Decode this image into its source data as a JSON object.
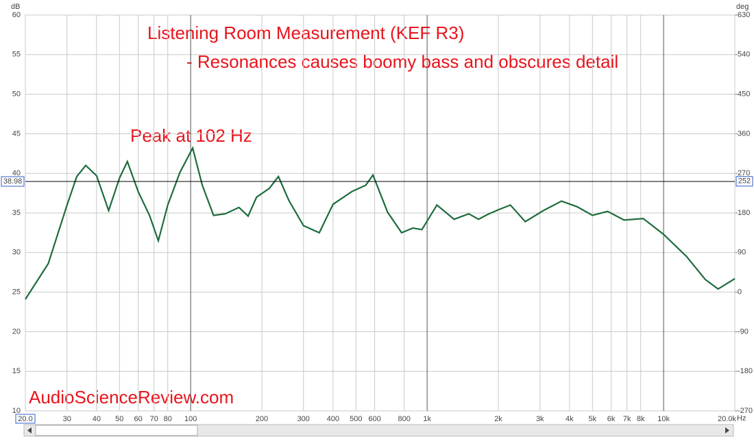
{
  "chart_data": {
    "type": "line",
    "title": "Listening Room Measurement (KEF R3)",
    "subtitle": "- Resonances causes boomy bass and obscures detail",
    "annotations": [
      "Peak at 102 Hz",
      "AudioScienceReview.com"
    ],
    "y_unit": "dB",
    "y2_unit": "deg",
    "x_unit": "Hz",
    "xscale": "log",
    "grid": true,
    "color": "#1d6b3c",
    "x": [
      20,
      25,
      30,
      33,
      36,
      40,
      45,
      50,
      54,
      60,
      67,
      73,
      80,
      90,
      102,
      112,
      125,
      140,
      160,
      175,
      190,
      215,
      235,
      260,
      300,
      350,
      400,
      480,
      550,
      590,
      680,
      780,
      870,
      950,
      1100,
      1300,
      1500,
      1650,
      1800,
      2000,
      2250,
      2600,
      3100,
      3700,
      4300,
      5000,
      5800,
      6800,
      8200,
      10000,
      12500,
      15000,
      17000,
      20000
    ],
    "values": [
      24.1,
      28.6,
      36,
      39.6,
      41,
      39.7,
      35.3,
      39.4,
      41.5,
      37.7,
      34.7,
      31.5,
      36,
      40.1,
      43.2,
      38.5,
      34.7,
      34.9,
      35.7,
      34.6,
      37,
      38.1,
      39.6,
      36.6,
      33.4,
      32.5,
      36.1,
      37.7,
      38.5,
      39.8,
      35.1,
      32.5,
      33.1,
      32.9,
      36,
      34.2,
      34.9,
      34.2,
      34.8,
      35.4,
      36,
      33.9,
      35.3,
      36.5,
      35.8,
      34.7,
      35.2,
      34.1,
      34.3,
      32.3,
      29.5,
      26.6,
      25.4,
      26.7
    ],
    "xlim": [
      20,
      20000
    ],
    "xticks": [
      {
        "value": 20,
        "label": "20.0"
      },
      30,
      40,
      50,
      60,
      70,
      80,
      100,
      200,
      300,
      400,
      500,
      600,
      800,
      {
        "value": 1000,
        "label": "1k"
      },
      {
        "value": 2000,
        "label": "2k"
      },
      {
        "value": 3000,
        "label": "3k"
      },
      {
        "value": 4000,
        "label": "4k"
      },
      {
        "value": 5000,
        "label": "5k"
      },
      {
        "value": 6000,
        "label": "6k"
      },
      {
        "value": 7000,
        "label": "7k"
      },
      {
        "value": 8000,
        "label": "8k"
      },
      {
        "value": 10000,
        "label": "10k"
      },
      {
        "value": 20000,
        "label": "20.0k"
      }
    ],
    "ylim": [
      10,
      60
    ],
    "yticks": [
      10,
      15,
      20,
      25,
      30,
      35,
      40,
      45,
      50,
      55,
      60
    ],
    "y2lim": [
      -270,
      630
    ],
    "y2ticks": [
      -270,
      -180,
      -90,
      0,
      90,
      180,
      270,
      360,
      450,
      540,
      630
    ],
    "cursor": {
      "value": 38.98,
      "y2_value": 252
    }
  }
}
